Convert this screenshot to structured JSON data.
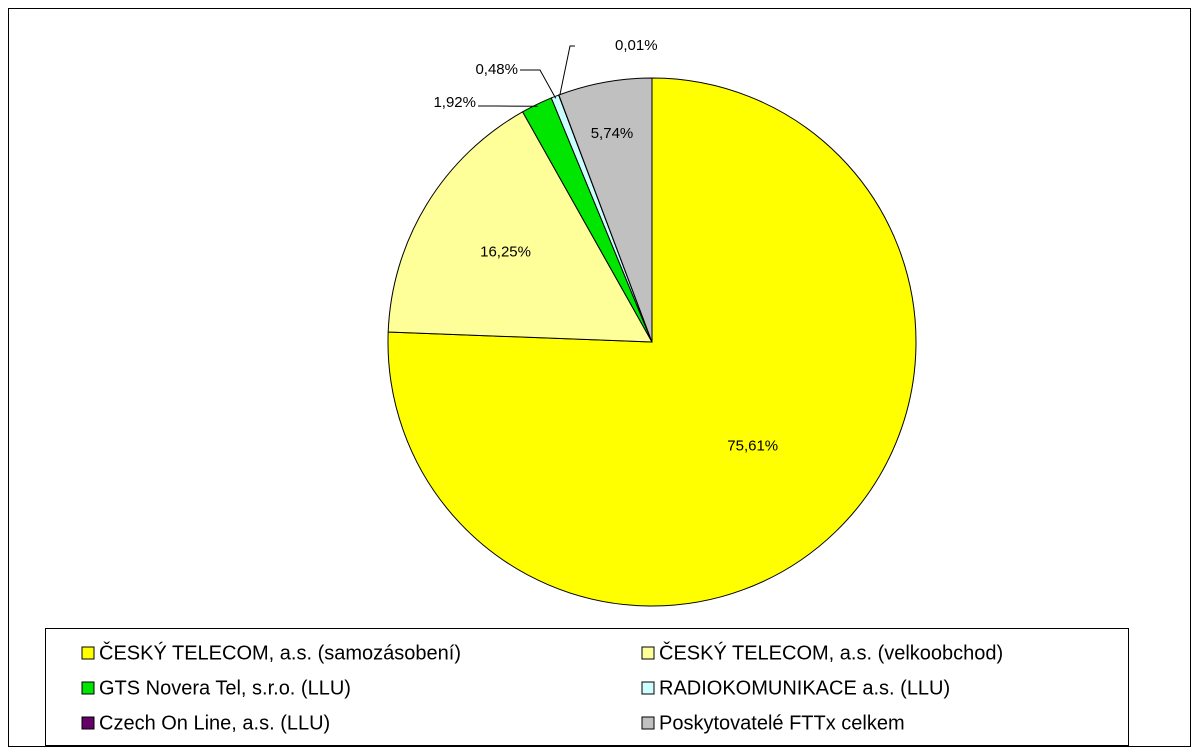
{
  "chart_data": {
    "type": "pie",
    "categories": [
      "ČESKÝ TELECOM, a.s. (samozásobení)",
      "ČESKÝ TELECOM, a.s. (velkoobchod)",
      "GTS Novera Tel, s.r.o. (LLU)",
      "RADIOKOMUNIKACE a.s. (LLU)",
      "Czech On Line, a.s. (LLU)",
      "Poskytovatelé FTTx celkem"
    ],
    "values": [
      75.61,
      16.25,
      1.92,
      0.48,
      0.01,
      5.74
    ],
    "value_labels": [
      "75,61%",
      "16,25%",
      "1,92%",
      "0,48%",
      "0,01%",
      "5,74%"
    ],
    "colors": [
      "#FFFF00",
      "#FFFF99",
      "#00E600",
      "#CCFFFF",
      "#660066",
      "#C0C0C0"
    ]
  }
}
